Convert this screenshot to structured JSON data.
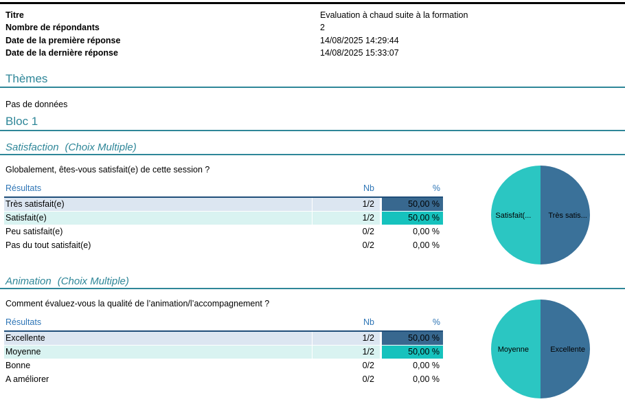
{
  "meta": {
    "fields": [
      {
        "label": "Titre",
        "value": "Evaluation à chaud suite à la formation"
      },
      {
        "label": "Nombre de répondants",
        "value": "2"
      },
      {
        "label": "Date de la première réponse",
        "value": "14/08/2025 14:29:44"
      },
      {
        "label": "Date de la dernière réponse",
        "value": "14/08/2025 15:33:07"
      }
    ]
  },
  "sections": {
    "themes": {
      "title": "Thèmes",
      "empty_text": "Pas de données"
    },
    "bloc1": {
      "title": "Bloc 1"
    }
  },
  "table_headers": {
    "results": "Résultats",
    "nb": "Nb",
    "pct": "%"
  },
  "colors": {
    "heading_teal": "#2E8698",
    "header_blue_text": "#2E75B6",
    "header_underline": "#1F4E79",
    "row_bg_blue": "#DCE6F1",
    "row_bg_teal": "#D9F3F1",
    "bar_blue": "#38688F",
    "bar_teal": "#16C2BD",
    "pie_blue": "#3A7199",
    "pie_teal": "#2BC6C2"
  },
  "blocks": [
    {
      "title": "Satisfaction",
      "suffix": "(Choix Multiple)",
      "question": "Globalement, êtes-vous satisfait(e) de cette session ?",
      "rows": [
        {
          "label": "Très satisfait(e)",
          "nb": "1/2",
          "pct": "50,00 %",
          "style": "blue",
          "pie_label": "Très satis...",
          "value": 50
        },
        {
          "label": "Satisfait(e)",
          "nb": "1/2",
          "pct": "50,00 %",
          "style": "teal",
          "pie_label": "Satisfait(...",
          "value": 50
        },
        {
          "label": "Peu satisfait(e)",
          "nb": "0/2",
          "pct": "0,00 %",
          "style": null,
          "pie_label": "",
          "value": 0
        },
        {
          "label": "Pas du tout satisfait(e)",
          "nb": "0/2",
          "pct": "0,00 %",
          "style": null,
          "pie_label": "",
          "value": 0
        }
      ]
    },
    {
      "title": "Animation",
      "suffix": "(Choix Multiple)",
      "question": "Comment évaluez-vous la qualité de l’animation/l’accompagnement ?",
      "rows": [
        {
          "label": "Excellente",
          "nb": "1/2",
          "pct": "50,00 %",
          "style": "blue",
          "pie_label": "Excellente",
          "value": 50
        },
        {
          "label": "Moyenne",
          "nb": "1/2",
          "pct": "50,00 %",
          "style": "teal",
          "pie_label": "Moyenne",
          "value": 50
        },
        {
          "label": "Bonne",
          "nb": "0/2",
          "pct": "0,00 %",
          "style": null,
          "pie_label": "",
          "value": 0
        },
        {
          "label": "A améliorer",
          "nb": "0/2",
          "pct": "0,00 %",
          "style": null,
          "pie_label": "",
          "value": 0
        }
      ]
    }
  ],
  "chart_data": [
    {
      "type": "pie",
      "title": "Satisfaction (Choix Multiple)",
      "question": "Globalement, êtes-vous satisfait(e) de cette session ?",
      "categories": [
        "Très satisfait(e)",
        "Satisfait(e)",
        "Peu satisfait(e)",
        "Pas du tout satisfait(e)"
      ],
      "values": [
        50,
        50,
        0,
        0
      ],
      "counts": [
        "1/2",
        "1/2",
        "0/2",
        "0/2"
      ],
      "slice_colors": [
        "#3A7199",
        "#2BC6C2",
        null,
        null
      ],
      "visible_slice_labels": [
        "Très satis...",
        "Satisfait(..."
      ],
      "legend_position": "none"
    },
    {
      "type": "pie",
      "title": "Animation (Choix Multiple)",
      "question": "Comment évaluez-vous la qualité de l’animation/l’accompagnement ?",
      "categories": [
        "Excellente",
        "Moyenne",
        "Bonne",
        "A améliorer"
      ],
      "values": [
        50,
        50,
        0,
        0
      ],
      "counts": [
        "1/2",
        "1/2",
        "0/2",
        "0/2"
      ],
      "slice_colors": [
        "#3A7199",
        "#2BC6C2",
        null,
        null
      ],
      "visible_slice_labels": [
        "Excellente",
        "Moyenne"
      ],
      "legend_position": "none"
    }
  ]
}
